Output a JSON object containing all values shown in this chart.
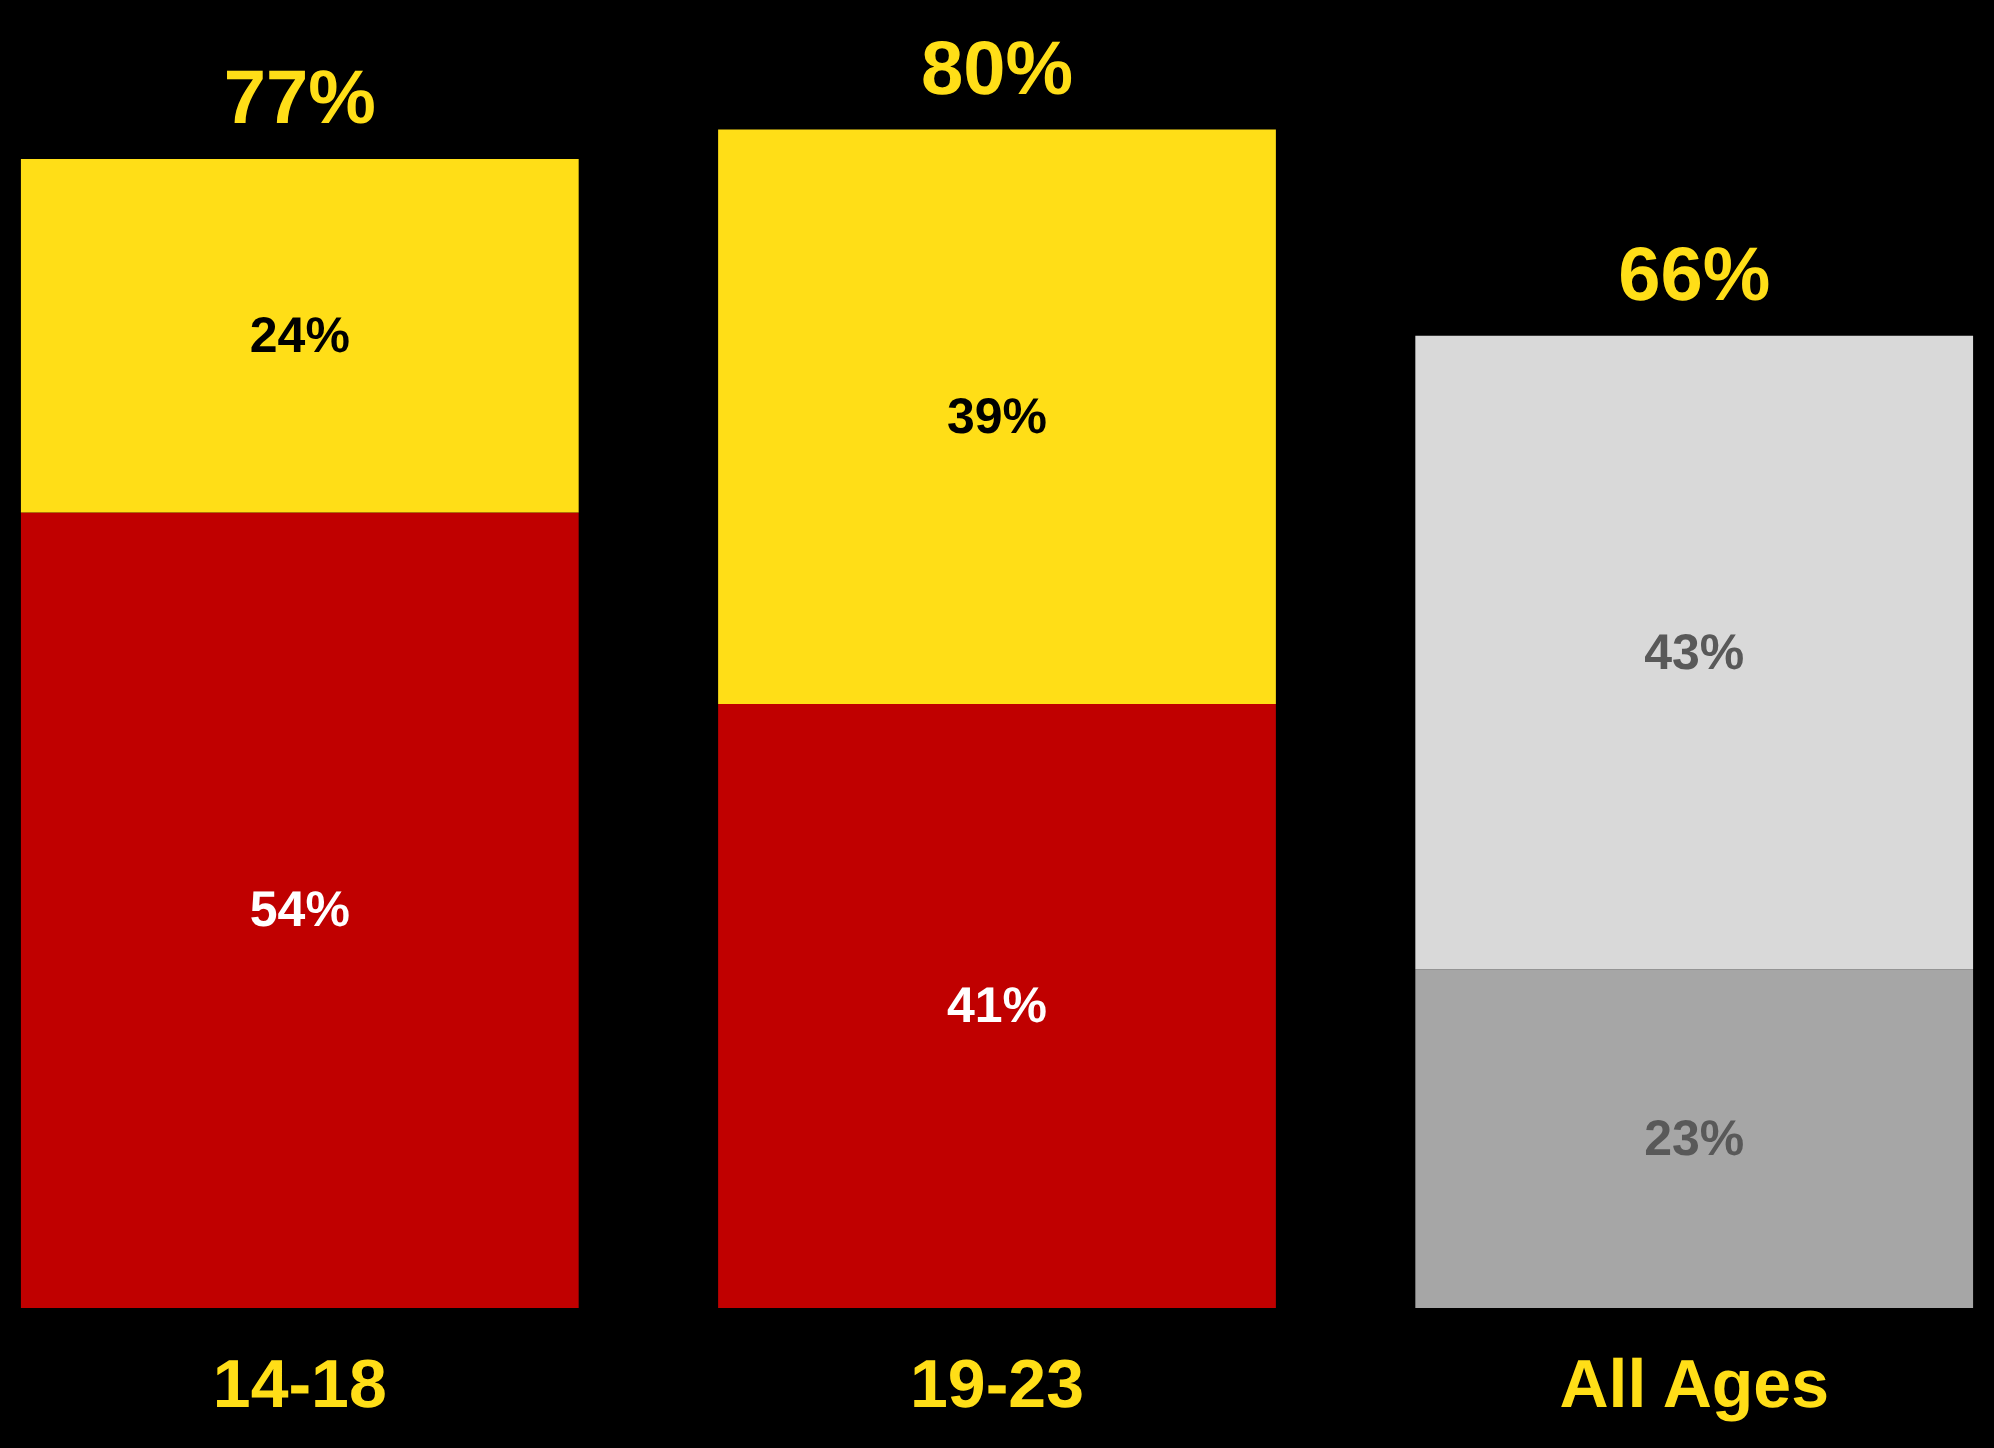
{
  "chart_data": {
    "type": "bar",
    "stacked": true,
    "categories": [
      "14-18",
      "19-23",
      "All Ages"
    ],
    "series": [
      {
        "colors": [
          "#c00000",
          "#c00000",
          "#a6a6a6"
        ],
        "values": [
          54,
          41,
          23
        ],
        "value_labels": [
          "54%",
          "41%",
          "23%"
        ]
      },
      {
        "colors": [
          "#ffde17",
          "#ffde17",
          "#d9d9d9"
        ],
        "values": [
          24,
          39,
          43
        ],
        "value_labels": [
          "24%",
          "39%",
          "43%"
        ]
      }
    ],
    "totals": [
      "77%",
      "80%",
      "66%"
    ],
    "tick_labels": "x",
    "grid": false
  }
}
